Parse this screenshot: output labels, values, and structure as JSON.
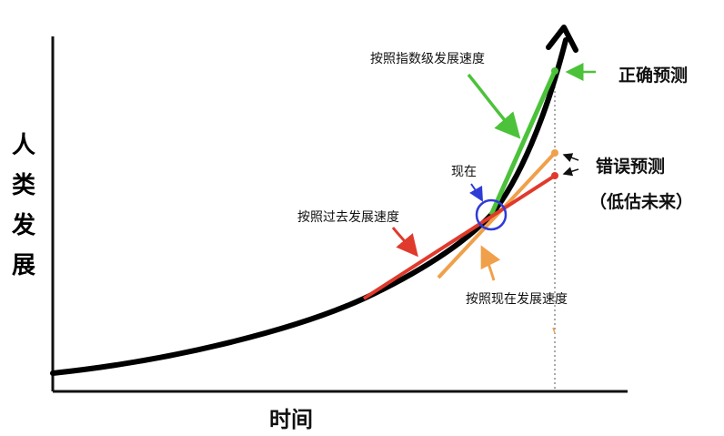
{
  "axes": {
    "y_label": "人类发展",
    "x_label": "时间"
  },
  "labels": {
    "exponential_speed": "按照指数级发展速度",
    "correct_prediction": "正确预测",
    "now": "现在",
    "wrong_prediction": "错误预测",
    "underestimate": "（低估未来）",
    "past_speed": "按照过去发展速度",
    "current_speed": "按照现在发展速度"
  },
  "colors": {
    "curve": "#000000",
    "exponential": "#4cc23a",
    "past": "#e03a2c",
    "current": "#f0a04a",
    "now_marker": "#2f3bd6"
  }
}
